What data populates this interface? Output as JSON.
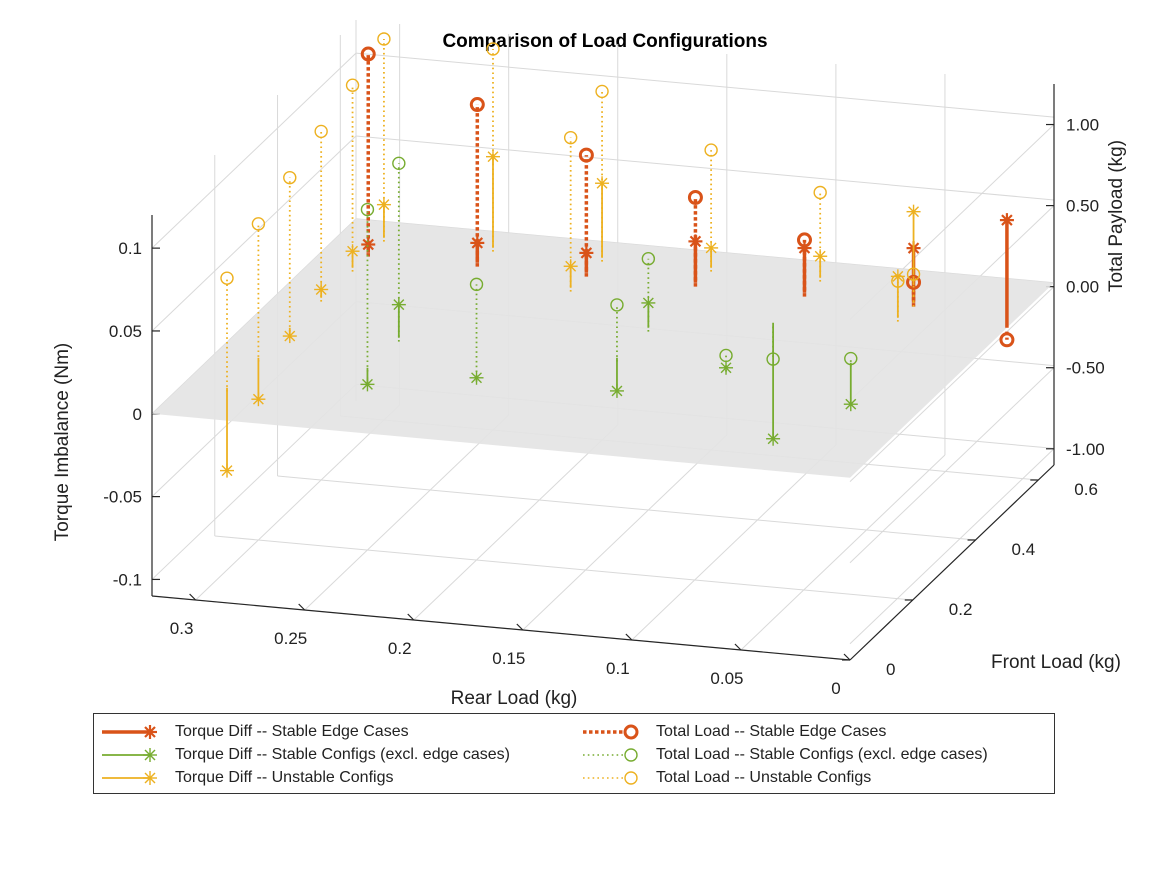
{
  "colors": {
    "edge": "#d95319",
    "stable": "#77ac30",
    "unstable": "#edb120",
    "plane": "#e3e3e3",
    "grid": "#d9d9d9",
    "axis": "#262626"
  },
  "chart_data": {
    "type": "stem3",
    "title": "Comparison of Load Configurations",
    "xlabel": "Rear Load (kg)",
    "ylabel": "Front Load (kg)",
    "zlabel": "Torque Imbalance (Nm)",
    "z2label": "Total Payload (kg)",
    "xticks": [
      "0",
      "0.05",
      "0.1",
      "0.15",
      "0.2",
      "0.25",
      "0.3"
    ],
    "yticks": [
      "0",
      "0.2",
      "0.4",
      "0.6"
    ],
    "zticks": [
      "-0.1",
      "-0.05",
      "0",
      "0.05",
      "0.1"
    ],
    "z2ticks": [
      "-1.00",
      "-0.50",
      "0.00",
      "0.50",
      "1.00"
    ],
    "xlim": [
      0,
      0.32
    ],
    "ylim": [
      0,
      0.65
    ],
    "zlim": [
      -0.11,
      0.12
    ],
    "z2lim": [
      -1.1,
      1.25
    ],
    "grid": true,
    "legend_position": "bottom",
    "series": [
      {
        "name": "Torque Diff -- Stable Edge Cases",
        "kind": "torque",
        "color_key": "edge",
        "marker": "asterisk",
        "line": "solid",
        "width": 3.5,
        "x": [
          0.3,
          0.25,
          0.2,
          0.15,
          0.1,
          0.05,
          0.0
        ],
        "y": [
          0.55,
          0.55,
          0.55,
          0.55,
          0.55,
          0.55,
          0.5
        ],
        "z": [
          0.005,
          0.012,
          0.012,
          0.025,
          0.027,
          0.033,
          0.065
        ]
      },
      {
        "name": "Torque Diff -- Stable Configs (excl. edge cases)",
        "kind": "torque",
        "color_key": "stable",
        "marker": "asterisk",
        "line": "solid",
        "width": 1.8,
        "x": [
          0.25,
          0.25,
          0.2,
          0.15,
          0.15,
          0.1,
          0.1,
          0.05
        ],
        "y": [
          0.2,
          0.3,
          0.2,
          0.3,
          0.4,
          0.3,
          0.45,
          0.35
        ],
        "z": [
          -0.01,
          0.02,
          0.0,
          -0.02,
          0.015,
          0.0,
          -0.07,
          -0.025
        ]
      },
      {
        "name": "Torque Diff -- Unstable Configs",
        "kind": "torque",
        "color_key": "unstable",
        "marker": "asterisk",
        "line": "solid",
        "width": 1.8,
        "x": [
          0.3,
          0.3,
          0.3,
          0.3,
          0.3,
          0.3,
          0.25,
          0.2,
          0.2,
          0.15,
          0.1,
          0.05,
          0.05
        ],
        "y": [
          0.1,
          0.2,
          0.3,
          0.4,
          0.5,
          0.6,
          0.6,
          0.6,
          0.5,
          0.6,
          0.6,
          0.5,
          0.55
        ],
        "z": [
          -0.05,
          -0.025,
          -0.005,
          0.005,
          0.01,
          0.02,
          0.055,
          0.045,
          0.013,
          0.012,
          0.013,
          0.025,
          0.055
        ]
      },
      {
        "name": "Total Load -- Stable Edge Cases",
        "kind": "payload",
        "color_key": "edge",
        "marker": "circle",
        "line": "dotted",
        "width": 3.5,
        "x": [
          0.3,
          0.25,
          0.2,
          0.15,
          0.1,
          0.05,
          0.0
        ],
        "y": [
          0.55,
          0.55,
          0.55,
          0.55,
          0.55,
          0.55,
          0.5
        ],
        "z": [
          1.25,
          1.0,
          0.75,
          0.55,
          0.35,
          0.15,
          -0.05
        ]
      },
      {
        "name": "Total Load -- Stable Configs (excl. edge cases)",
        "kind": "payload",
        "color_key": "stable",
        "marker": "circle",
        "line": "dotted",
        "width": 1.8,
        "x": [
          0.25,
          0.25,
          0.2,
          0.15,
          0.15,
          0.1,
          0.1,
          0.05
        ],
        "y": [
          0.2,
          0.3,
          0.2,
          0.3,
          0.4,
          0.3,
          0.45,
          0.35
        ],
        "z": [
          1.0,
          1.1,
          0.6,
          0.35,
          0.45,
          0.1,
          -0.2,
          0.05
        ]
      },
      {
        "name": "Total Load -- Unstable Configs",
        "kind": "payload",
        "color_key": "unstable",
        "marker": "circle",
        "line": "dotted",
        "width": 1.8,
        "x": [
          0.3,
          0.3,
          0.3,
          0.3,
          0.3,
          0.3,
          0.25,
          0.2,
          0.2,
          0.15,
          0.1,
          0.05,
          0.05
        ],
        "y": [
          0.1,
          0.2,
          0.3,
          0.4,
          0.5,
          0.6,
          0.6,
          0.6,
          0.5,
          0.6,
          0.6,
          0.5,
          0.55
        ],
        "z": [
          0.7,
          0.85,
          0.95,
          1.05,
          1.15,
          1.25,
          1.25,
          1.05,
          0.95,
          0.75,
          0.55,
          0.25,
          0.2
        ]
      }
    ]
  }
}
